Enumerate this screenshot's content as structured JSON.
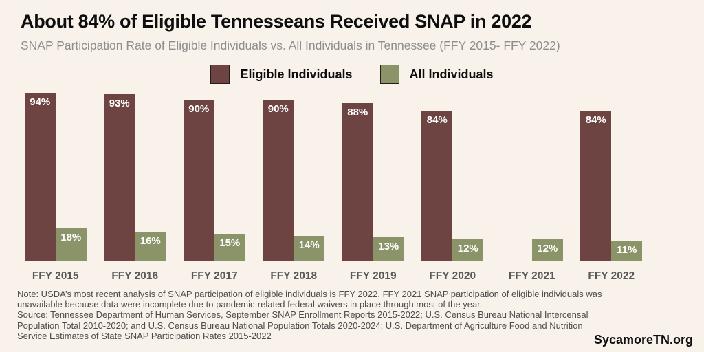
{
  "header": {
    "title": "About 84% of Eligible Tennesseans Received SNAP in 2022",
    "subtitle": "SNAP Participation Rate of Eligible Individuals vs. All Individuals in Tennessee (FFY 2015- FFY 2022)"
  },
  "chart_data": {
    "type": "bar",
    "categories": [
      "FFY 2015",
      "FFY 2016",
      "FFY 2017",
      "FFY 2018",
      "FFY 2019",
      "FFY 2020",
      "FFY 2021",
      "FFY 2022"
    ],
    "series": [
      {
        "name": "Eligible Individuals",
        "color": "#6E4443",
        "values": [
          94,
          93,
          90,
          90,
          88,
          84,
          null,
          84
        ]
      },
      {
        "name": "All Individuals",
        "color": "#8B9368",
        "values": [
          18,
          16,
          15,
          14,
          13,
          12,
          12,
          11
        ]
      }
    ],
    "value_suffix": "%",
    "bar_label_color": "#FFFFFF",
    "ylim": [
      0,
      100
    ],
    "grid": false,
    "legend_position": "top",
    "xlabel": "",
    "ylabel": ""
  },
  "note": {
    "note_text": "Note: USDA’s most recent analysis of SNAP participation of eligible individuals is FFY 2022. FFY 2021 SNAP participation of eligible individuals was unavailable because data were incomplete due to pandemic-related federal waivers in place through most of the year.",
    "source_text": "Source: Tennessee Department of Human Services, September SNAP Enrollment Reports 2015-2022; U.S. Census Bureau National Intercensal Population Total 2010-2020; and U.S. Census Bureau National Population Totals 2020-2024; U.S. Department of Agriculture Food and Nutrition Service Estimates of State SNAP Participation Rates 2015-2022"
  },
  "branding": {
    "site": "SycamoreTN.org"
  },
  "colors": {
    "background": "#F9F2EB",
    "axis_line": "#DCDCDC",
    "x_label_text": "#595959",
    "note_text": "#4D4D4D"
  }
}
